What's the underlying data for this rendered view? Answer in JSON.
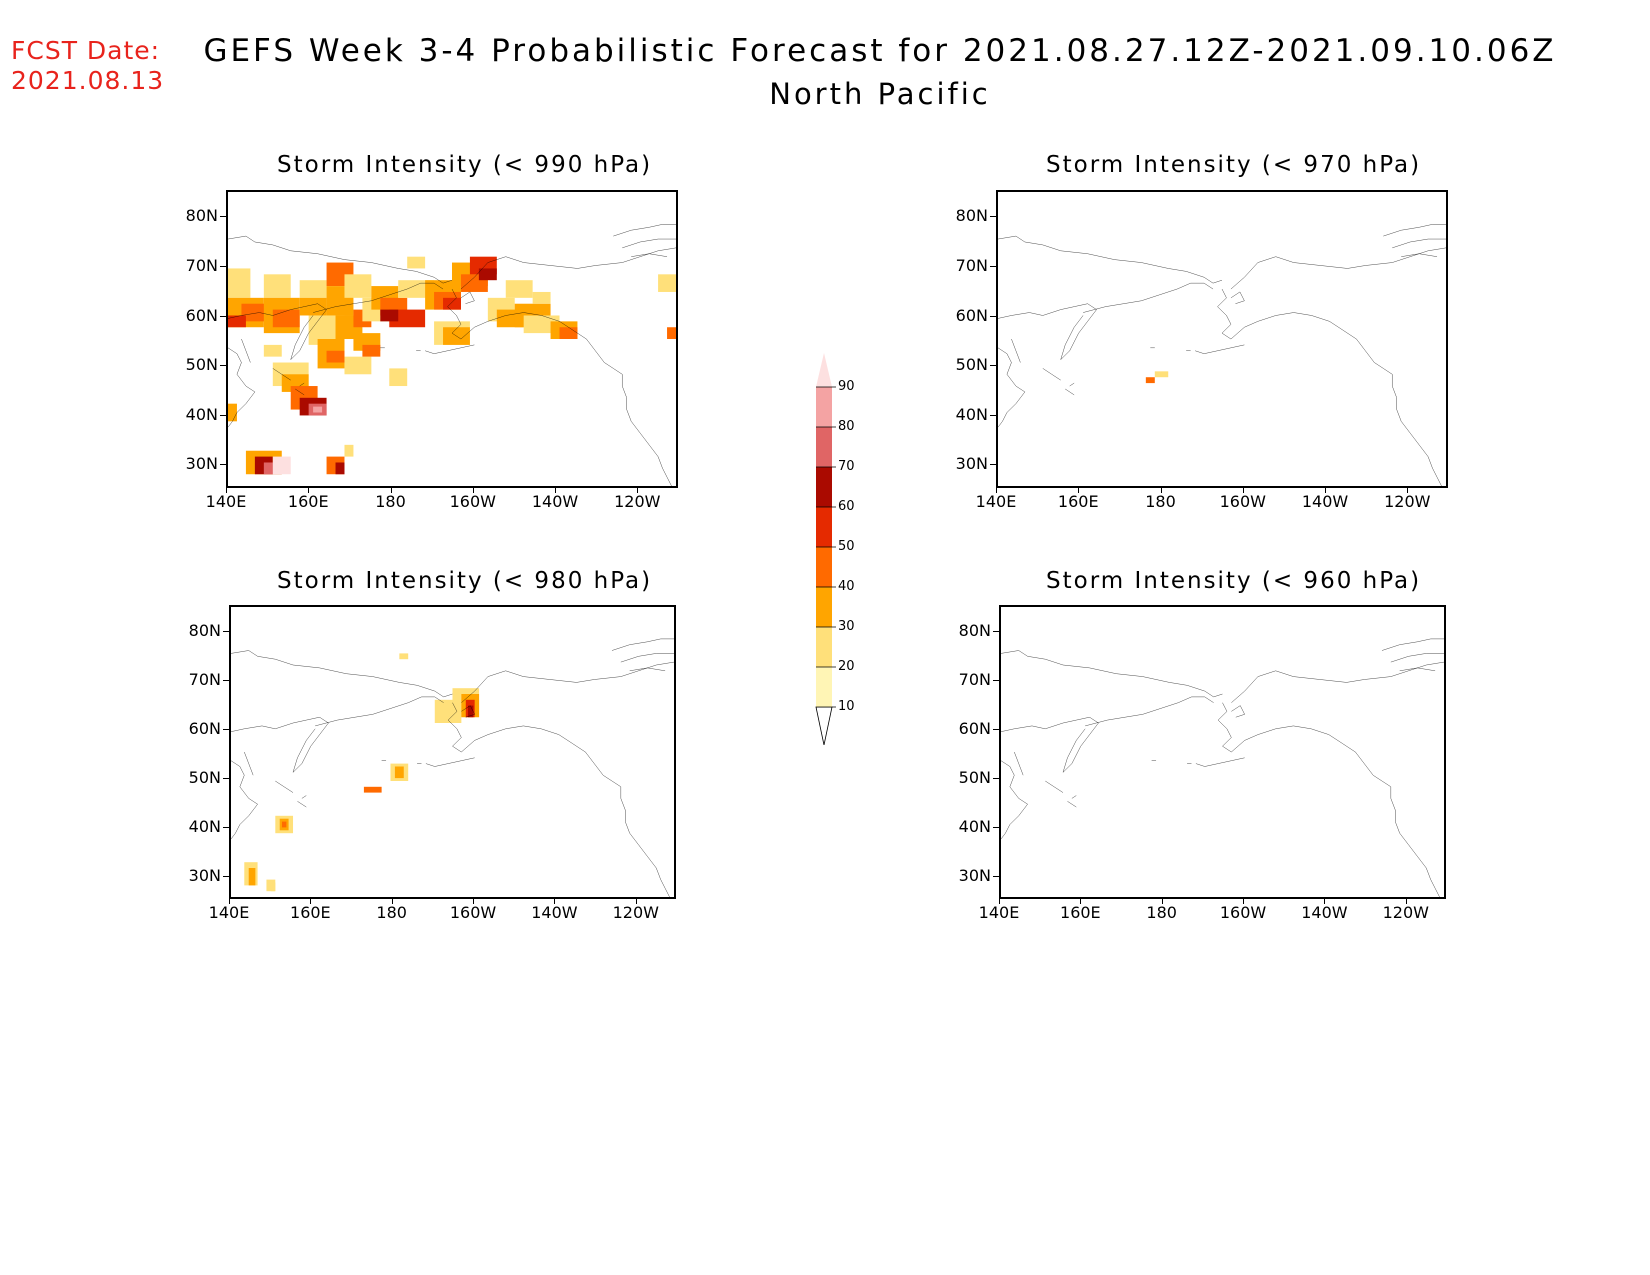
{
  "header": {
    "fcst_label": "FCST Date:",
    "fcst_date": "2021.08.13",
    "title": "GEFS Week 3-4 Probabilistic Forecast for 2021.08.27.12Z-2021.09.10.06Z",
    "region": "North Pacific"
  },
  "axes": {
    "lat_labels": [
      "80N",
      "70N",
      "60N",
      "50N",
      "40N",
      "30N"
    ],
    "lon_labels": [
      "140E",
      "160E",
      "180",
      "160W",
      "140W",
      "120W"
    ]
  },
  "panels": [
    {
      "title": "Storm Intensity (< 990 hPa)",
      "id": "p990"
    },
    {
      "title": "Storm Intensity (< 970 hPa)",
      "id": "p970"
    },
    {
      "title": "Storm Intensity (< 980 hPa)",
      "id": "p980"
    },
    {
      "title": "Storm Intensity (< 960 hPa)",
      "id": "p960"
    }
  ],
  "colorbar": {
    "levels": [
      "10",
      "20",
      "30",
      "40",
      "50",
      "60",
      "70",
      "80",
      "90"
    ],
    "colors": [
      "#fff5b5",
      "#ffe07a",
      "#ffa500",
      "#ff6a00",
      "#e52a00",
      "#aa0a00",
      "#e06565",
      "#f4a3a3",
      "#fde0e0"
    ]
  }
}
